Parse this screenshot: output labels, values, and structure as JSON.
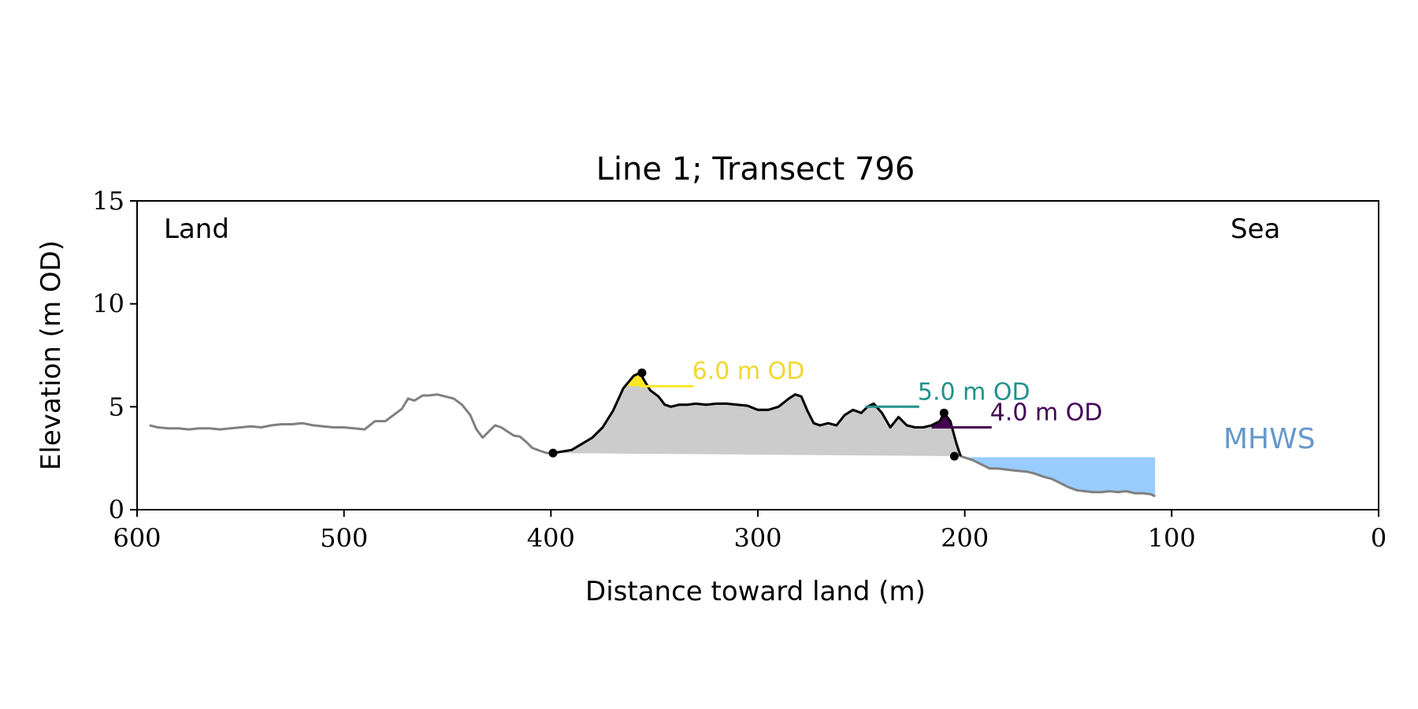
{
  "chart_data": {
    "type": "line",
    "title": "Line 1; Transect 796",
    "xlabel": "Distance toward land (m)",
    "ylabel": "Elevation (m OD)",
    "xlim": [
      600,
      0
    ],
    "ylim": [
      0,
      15
    ],
    "x_reversed": true,
    "x_ticks": [
      600,
      500,
      400,
      300,
      200,
      100,
      0
    ],
    "y_ticks": [
      0,
      5,
      10,
      15
    ],
    "grid": false,
    "annotations": {
      "land": "Land",
      "sea": "Sea",
      "mhws": "MHWS"
    },
    "mhws_elevation": 2.55,
    "mhws_x_range": [
      202,
      108
    ],
    "colors": {
      "profile": "#808080",
      "dune": "#000000",
      "fill": "#cccccc",
      "mhws": "#99ccff",
      "mhws_text": "#6699cc",
      "level_6": "#fde725",
      "level_5": "#21918c",
      "level_4": "#440154"
    },
    "profile": {
      "x": [
        594,
        590,
        585,
        580,
        575,
        570,
        565,
        560,
        555,
        550,
        545,
        540,
        535,
        530,
        525,
        520,
        515,
        510,
        505,
        500,
        495,
        490,
        485,
        480,
        476,
        472,
        469,
        466,
        462,
        459,
        455,
        451,
        447,
        443,
        439,
        436,
        433,
        430,
        427,
        424,
        421,
        418,
        415,
        412,
        409,
        405,
        402,
        399
      ],
      "y": [
        4.1,
        4.0,
        3.95,
        3.95,
        3.9,
        3.95,
        3.95,
        3.9,
        3.95,
        4.0,
        4.05,
        4.0,
        4.1,
        4.15,
        4.15,
        4.2,
        4.1,
        4.05,
        4.0,
        4.0,
        3.95,
        3.9,
        4.3,
        4.3,
        4.6,
        4.9,
        5.4,
        5.3,
        5.55,
        5.55,
        5.6,
        5.5,
        5.4,
        5.1,
        4.6,
        3.9,
        3.5,
        3.8,
        4.1,
        4.0,
        3.8,
        3.6,
        3.55,
        3.3,
        3.0,
        2.85,
        2.75,
        2.75
      ]
    },
    "dune": {
      "x": [
        399,
        390,
        385,
        380,
        375,
        370,
        365,
        360,
        357,
        355,
        352,
        348,
        345,
        342,
        338,
        334,
        330,
        325,
        320,
        315,
        310,
        305,
        300,
        295,
        290,
        285,
        282,
        279,
        276,
        273,
        270,
        266,
        262,
        258,
        254,
        250,
        247,
        244,
        240,
        236,
        232,
        228,
        224,
        220,
        216,
        212,
        210,
        207,
        204,
        202
      ],
      "y": [
        2.75,
        2.9,
        3.2,
        3.5,
        4.0,
        4.8,
        5.9,
        6.5,
        6.65,
        6.3,
        5.8,
        5.5,
        5.1,
        5.0,
        5.1,
        5.1,
        5.15,
        5.1,
        5.15,
        5.15,
        5.1,
        5.05,
        4.85,
        4.85,
        5.0,
        5.4,
        5.6,
        5.5,
        4.8,
        4.2,
        4.1,
        4.2,
        4.1,
        4.6,
        4.85,
        4.7,
        5.0,
        5.15,
        4.7,
        4.0,
        4.5,
        4.1,
        4.0,
        4.0,
        4.1,
        4.3,
        4.7,
        4.3,
        3.2,
        2.6
      ]
    },
    "sea_profile": {
      "x": [
        202,
        196,
        192,
        188,
        184,
        180,
        176,
        170,
        166,
        162,
        158,
        154,
        150,
        146,
        142,
        138,
        134,
        130,
        126,
        122,
        118,
        114,
        110,
        108
      ],
      "y": [
        2.55,
        2.4,
        2.2,
        2.0,
        2.0,
        1.95,
        1.9,
        1.85,
        1.75,
        1.6,
        1.5,
        1.3,
        1.1,
        0.95,
        0.9,
        0.85,
        0.85,
        0.9,
        0.85,
        0.9,
        0.8,
        0.8,
        0.75,
        0.65
      ]
    },
    "dune_base": {
      "x": [
        399,
        202
      ],
      "y": [
        2.75,
        2.6
      ]
    },
    "markers": [
      {
        "x": 399,
        "y": 2.75
      },
      {
        "x": 356,
        "y": 6.65
      },
      {
        "x": 210,
        "y": 4.7
      },
      {
        "x": 205,
        "y": 2.6
      }
    ],
    "levels": [
      {
        "label": "6.0 m OD",
        "value": 6.0,
        "x_from": 357,
        "x_to": 331,
        "color": "#fde725",
        "text_color": "#f2d72e"
      },
      {
        "label": "5.0 m OD",
        "value": 5.0,
        "x_from": 248,
        "x_to": 222,
        "color": "#21918c",
        "text_color": "#21918c"
      },
      {
        "label": "4.0 m OD",
        "value": 4.0,
        "x_from": 216,
        "x_to": 187,
        "color": "#440154",
        "text_color": "#440154"
      }
    ]
  }
}
